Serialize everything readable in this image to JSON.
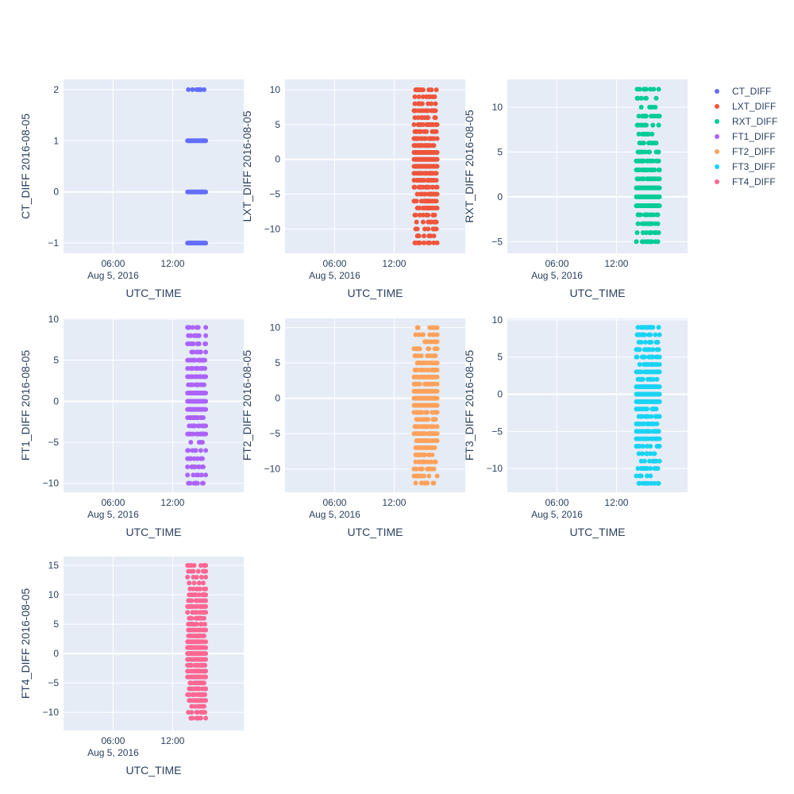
{
  "chart_data": [
    {
      "type": "scatter",
      "series_name": "CT_DIFF",
      "color": "#636efa",
      "xlabel": "UTC_TIME",
      "ylabel": "CT_DIFF 2016-08-05",
      "xticks": [
        "06:00",
        "12:00"
      ],
      "xtick_date": "Aug 5, 2016",
      "x_range": [
        "2016-08-05 01:00",
        "2016-08-05 19:10"
      ],
      "ylim": [
        -1.2,
        2.2
      ],
      "yticks": [
        -1,
        0,
        1,
        2
      ],
      "x_span": [
        "2016-08-05 13:30",
        "2016-08-05 15:20"
      ],
      "values_min": -1,
      "values_max": 2,
      "density": 0.45,
      "grid": true
    },
    {
      "type": "scatter",
      "series_name": "LXT_DIFF",
      "color": "#ef553b",
      "xlabel": "UTC_TIME",
      "ylabel": "LXT_DIFF 2016-08-05",
      "xticks": [
        "06:00",
        "12:00"
      ],
      "xtick_date": "Aug 5, 2016",
      "x_range": [
        "2016-08-05 01:00",
        "2016-08-05 19:10"
      ],
      "ylim": [
        -13.5,
        11.5
      ],
      "yticks": [
        -10,
        -5,
        0,
        5,
        10
      ],
      "x_span": [
        "2016-08-05 14:00",
        "2016-08-05 16:20"
      ],
      "values_min": -12,
      "values_max": 10,
      "density": 0.4,
      "grid": true
    },
    {
      "type": "scatter",
      "series_name": "RXT_DIFF",
      "color": "#00cc96",
      "xlabel": "UTC_TIME",
      "ylabel": "RXT_DIFF 2016-08-05",
      "xticks": [
        "06:00",
        "12:00"
      ],
      "xtick_date": "Aug 5, 2016",
      "x_range": [
        "2016-08-05 01:00",
        "2016-08-05 19:10"
      ],
      "ylim": [
        -6.3,
        13.1
      ],
      "yticks": [
        -5,
        0,
        5,
        10
      ],
      "x_span": [
        "2016-08-05 14:00",
        "2016-08-05 16:20"
      ],
      "values_min": -5,
      "values_max": 12,
      "density": 0.35,
      "grid": true
    },
    {
      "type": "scatter",
      "series_name": "FT1_DIFF",
      "color": "#ab63fa",
      "xlabel": "UTC_TIME",
      "ylabel": "FT1_DIFF 2016-08-05",
      "xticks": [
        "06:00",
        "12:00"
      ],
      "xtick_date": "Aug 5, 2016",
      "x_range": [
        "2016-08-05 01:00",
        "2016-08-05 19:10"
      ],
      "ylim": [
        -11.1,
        10.1
      ],
      "yticks": [
        -10,
        -5,
        0,
        5,
        10
      ],
      "x_span": [
        "2016-08-05 13:30",
        "2016-08-05 15:20"
      ],
      "values_min": -10,
      "values_max": 9,
      "density": 0.4,
      "grid": true
    },
    {
      "type": "scatter",
      "series_name": "FT2_DIFF",
      "color": "#ffa15a",
      "xlabel": "UTC_TIME",
      "ylabel": "FT2_DIFF 2016-08-05",
      "xticks": [
        "06:00",
        "12:00"
      ],
      "xtick_date": "Aug 5, 2016",
      "x_range": [
        "2016-08-05 01:00",
        "2016-08-05 19:10"
      ],
      "ylim": [
        -13.3,
        11.3
      ],
      "yticks": [
        -10,
        -5,
        0,
        5,
        10
      ],
      "x_span": [
        "2016-08-05 14:00",
        "2016-08-05 16:20"
      ],
      "values_min": -12,
      "values_max": 10,
      "density": 0.4,
      "grid": true
    },
    {
      "type": "scatter",
      "series_name": "FT3_DIFF",
      "color": "#19d3f3",
      "xlabel": "UTC_TIME",
      "ylabel": "FT3_DIFF 2016-08-05",
      "xticks": [
        "06:00",
        "12:00"
      ],
      "xtick_date": "Aug 5, 2016",
      "x_range": [
        "2016-08-05 01:00",
        "2016-08-05 19:10"
      ],
      "ylim": [
        -13.2,
        10.2
      ],
      "yticks": [
        -10,
        -5,
        0,
        5,
        10
      ],
      "x_span": [
        "2016-08-05 14:00",
        "2016-08-05 16:20"
      ],
      "values_min": -12,
      "values_max": 9,
      "density": 0.4,
      "grid": true
    },
    {
      "type": "scatter",
      "series_name": "FT4_DIFF",
      "color": "#ff6692",
      "xlabel": "UTC_TIME",
      "ylabel": "FT4_DIFF 2016-08-05",
      "xticks": [
        "06:00",
        "12:00"
      ],
      "xtick_date": "Aug 5, 2016",
      "x_range": [
        "2016-08-05 01:00",
        "2016-08-05 19:10"
      ],
      "ylim": [
        -13.1,
        16.5
      ],
      "yticks": [
        -10,
        -5,
        0,
        5,
        10,
        15
      ],
      "x_span": [
        "2016-08-05 13:30",
        "2016-08-05 15:20"
      ],
      "values_min": -11,
      "values_max": 15,
      "density": 0.45,
      "grid": true
    }
  ],
  "legend": {
    "placement": "top-right",
    "items": [
      {
        "label": "CT_DIFF",
        "color": "#636efa"
      },
      {
        "label": "LXT_DIFF",
        "color": "#ef553b"
      },
      {
        "label": "RXT_DIFF",
        "color": "#00cc96"
      },
      {
        "label": "FT1_DIFF",
        "color": "#ab63fa"
      },
      {
        "label": "FT2_DIFF",
        "color": "#ffa15a"
      },
      {
        "label": "FT3_DIFF",
        "color": "#19d3f3"
      },
      {
        "label": "FT4_DIFF",
        "color": "#ff6692"
      }
    ]
  },
  "colors": {
    "plot_background": "#e5ecf6",
    "grid": "#ffffff",
    "text": "#2a3f5f"
  }
}
